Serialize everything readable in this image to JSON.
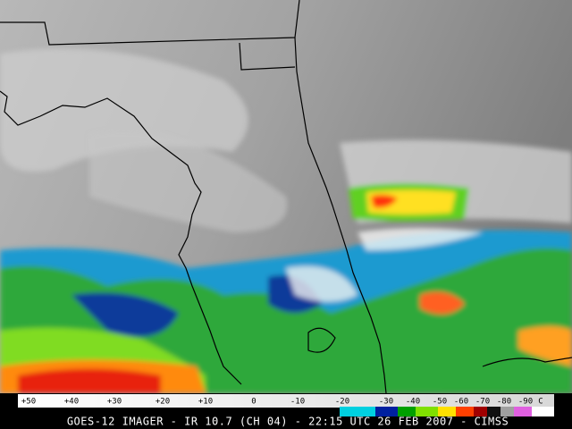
{
  "colorbar": {
    "labels": [
      "+50",
      "+40",
      "+30",
      "+20",
      "+10",
      "0",
      "-10",
      "-20",
      "-30",
      "-40",
      "-50",
      "-60",
      "-70",
      "-80",
      "-90"
    ],
    "unit": "C"
  },
  "caption": "GOES-12 IMAGER - IR 10.7 (CH 04) - 22:15 UTC 26 FEB 2007 - CIMSS"
}
